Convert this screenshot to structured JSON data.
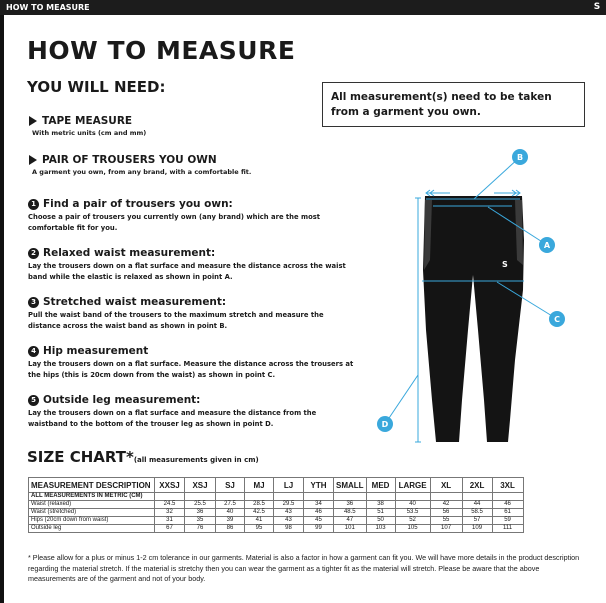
{
  "header": {
    "title": "HOW TO MEASURE",
    "logo": "S"
  },
  "page_title": "HOW TO MEASURE",
  "you_will_need": {
    "title": "YOU WILL NEED:",
    "items": [
      {
        "label": "TAPE MEASURE",
        "desc": "With metric units (cm and mm)"
      },
      {
        "label": "PAIR OF TROUSERS YOU OWN",
        "desc": "A garment you own, from any brand, with a comfortable fit."
      }
    ]
  },
  "notice": "All measurement(s) need to be taken from a garment you own.",
  "steps": [
    {
      "num": "1",
      "title": "Find a pair of trousers you own:",
      "body": "Choose a pair of trousers you currently own (any brand) which are the most comfortable fit for you."
    },
    {
      "num": "2",
      "title": "Relaxed waist measurement:",
      "body": "Lay the trousers down on a flat surface and measure the distance across the waist band while the elastic is relaxed as shown in point A."
    },
    {
      "num": "3",
      "title": "Stretched waist measurement:",
      "body": "Pull the waist band of the trousers to the maximum stretch and measure the distance across the waist band as shown in point B."
    },
    {
      "num": "4",
      "title": "Hip measurement",
      "body": "Lay the trousers down on a flat surface. Measure the distance across the trousers at the hips (this is 20cm down from the waist)  as shown in point C."
    },
    {
      "num": "5",
      "title": "Outside leg measurement:",
      "body": "Lay the trousers down on a flat surface and measure the distance from the waistband to the bottom of the trouser  leg as shown in point D."
    }
  ],
  "diagram": {
    "points": [
      "A",
      "B",
      "C",
      "D"
    ],
    "accent": "#3aa8dc"
  },
  "size_chart": {
    "title": "SIZE CHART*",
    "subtitle": "(all measurements given in cm)",
    "headers": [
      "MEASUREMENT DESCRIPTION",
      "XXSJ",
      "XSJ",
      "SJ",
      "MJ",
      "LJ",
      "YTH",
      "SMALL",
      "MED",
      "LARGE",
      "XL",
      "2XL",
      "3XL"
    ],
    "subheader": "ALL MEASUREMENTS IN METRIC (CM)",
    "rows": [
      [
        "Waist (relaxed)",
        "24.5",
        "25.5",
        "27.5",
        "28.5",
        "29.5",
        "34",
        "36",
        "38",
        "40",
        "42",
        "44",
        "46"
      ],
      [
        "Waist (stretched)",
        "32",
        "36",
        "40",
        "42.5",
        "43",
        "46",
        "48.5",
        "51",
        "53.5",
        "56",
        "58.5",
        "61"
      ],
      [
        "Hips (20cm down from waist)",
        "31",
        "35",
        "39",
        "41",
        "43",
        "45",
        "47",
        "50",
        "52",
        "55",
        "57",
        "59"
      ],
      [
        "Outside leg",
        "67",
        "76",
        "86",
        "95",
        "98",
        "99",
        "101",
        "103",
        "105",
        "107",
        "109",
        "111"
      ]
    ]
  },
  "footnote": "* Please allow for a plus or minus 1-2 cm tolerance in our garments. Material is also a factor in how a garment can fit you. We will have more details in the product description regarding the material stretch.  If the material is stretchy then you can wear the garment as a tighter fit as the material will stretch.  Please be aware that the above measurements are of the garment and not of your body."
}
